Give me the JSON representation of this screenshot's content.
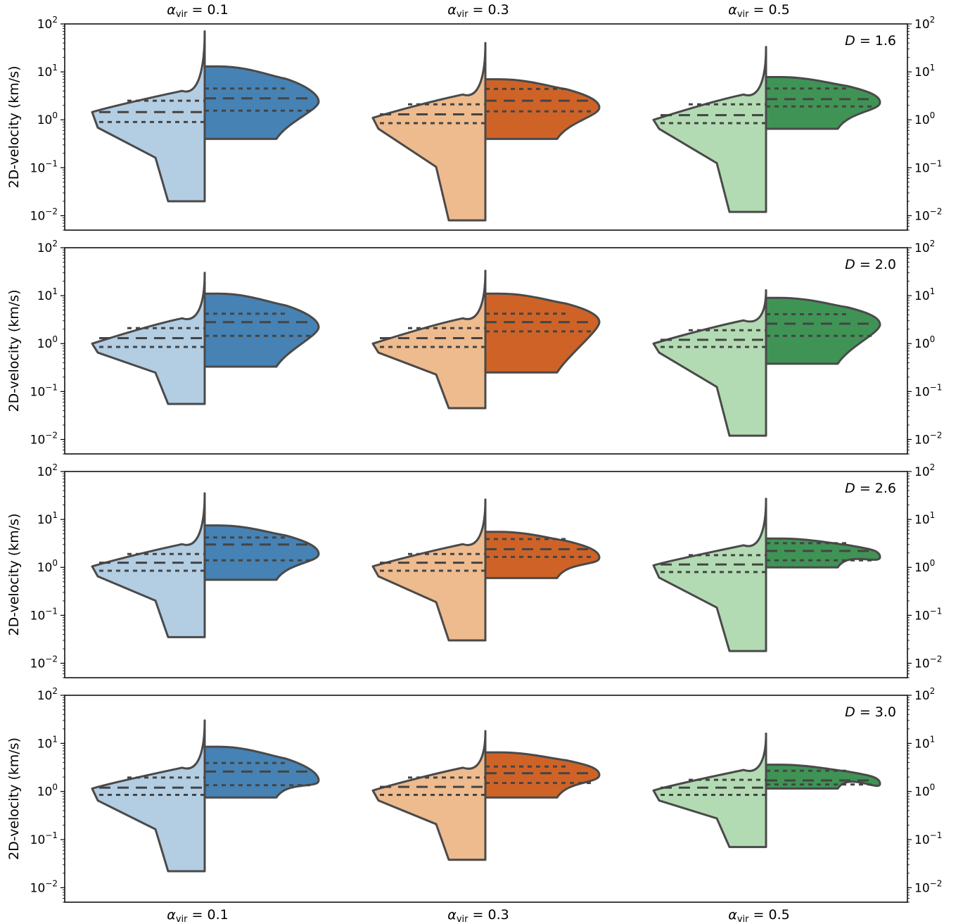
{
  "figure": {
    "column_labels": [
      {
        "symbol": "α",
        "subscript": "vir",
        "value": " = 0.1"
      },
      {
        "symbol": "α",
        "subscript": "vir",
        "value": " = 0.3"
      },
      {
        "symbol": "α",
        "subscript": "vir",
        "value": " = 0.5"
      }
    ],
    "ylabel": "2D-velocity (km/s)"
  },
  "chart_data": {
    "type": "split-violin",
    "yscale": "log",
    "ylim": [
      0.005,
      100
    ],
    "yticks": [
      0.01,
      0.1,
      1,
      10,
      100
    ],
    "ytick_labels": [
      {
        "base": "10",
        "exp": "−2"
      },
      {
        "base": "10",
        "exp": "−1"
      },
      {
        "base": "10",
        "exp": "0"
      },
      {
        "base": "10",
        "exp": "1"
      },
      {
        "base": "10",
        "exp": "2"
      }
    ],
    "grid": false,
    "groups": [
      "α_vir = 0.1",
      "α_vir = 0.3",
      "α_vir = 0.5"
    ],
    "colors": {
      "outline": "#4a4a4a",
      "quartile_line": "#444444",
      "light": [
        "#b3cde3",
        "#eebb8e",
        "#b3dbb3"
      ],
      "dark": [
        "#4682b4",
        "#cf6327",
        "#3f9455"
      ]
    },
    "panels": [
      {
        "annotation": {
          "var": "D",
          "value": " = 1.6"
        },
        "violins": [
          {
            "left": {
              "min": 0.02,
              "max": 70,
              "q1": 0.9,
              "median": 1.45,
              "q3": 2.5,
              "head": 1.45
            },
            "right": {
              "min": 0.4,
              "max": 13,
              "q1": 1.55,
              "median": 2.8,
              "q3": 4.5,
              "bulge": 2.4
            }
          },
          {
            "left": {
              "min": 0.008,
              "max": 40,
              "q1": 0.85,
              "median": 1.3,
              "q3": 2.1,
              "head": 1.1
            },
            "right": {
              "min": 0.4,
              "max": 7,
              "q1": 1.5,
              "median": 2.5,
              "q3": 4.4,
              "bulge": 1.8
            }
          },
          {
            "left": {
              "min": 0.012,
              "max": 33,
              "q1": 0.85,
              "median": 1.25,
              "q3": 2.1,
              "head": 1.0
            },
            "right": {
              "min": 0.65,
              "max": 7.8,
              "q1": 1.9,
              "median": 2.7,
              "q3": 4.5,
              "bulge": 2.3
            }
          }
        ]
      },
      {
        "annotation": {
          "var": "D",
          "value": " = 2.0"
        },
        "violins": [
          {
            "left": {
              "min": 0.055,
              "max": 30,
              "q1": 0.85,
              "median": 1.3,
              "q3": 2.1,
              "head": 1.0
            },
            "right": {
              "min": 0.33,
              "max": 11,
              "q1": 1.45,
              "median": 2.8,
              "q3": 4.2,
              "bulge": 2.2
            }
          },
          {
            "left": {
              "min": 0.045,
              "max": 33,
              "q1": 0.85,
              "median": 1.3,
              "q3": 2.1,
              "head": 1.0
            },
            "right": {
              "min": 0.25,
              "max": 11,
              "q1": 1.8,
              "median": 2.8,
              "q3": 4.2,
              "bulge": 2.8
            }
          },
          {
            "left": {
              "min": 0.012,
              "max": 13,
              "q1": 0.85,
              "median": 1.2,
              "q3": 1.9,
              "head": 1.0
            },
            "right": {
              "min": 0.38,
              "max": 9,
              "q1": 1.45,
              "median": 2.6,
              "q3": 4.1,
              "bulge": 2.5
            }
          }
        ]
      },
      {
        "annotation": {
          "var": "D",
          "value": " = 2.6"
        },
        "violins": [
          {
            "left": {
              "min": 0.035,
              "max": 35,
              "q1": 0.85,
              "median": 1.25,
              "q3": 1.9,
              "head": 1.05
            },
            "right": {
              "min": 0.55,
              "max": 7.5,
              "q1": 1.4,
              "median": 3.0,
              "q3": 4.2,
              "bulge": 1.9
            }
          },
          {
            "left": {
              "min": 0.03,
              "max": 26,
              "q1": 0.85,
              "median": 1.25,
              "q3": 1.9,
              "head": 1.05
            },
            "right": {
              "min": 0.6,
              "max": 5.5,
              "q1": 1.65,
              "median": 2.4,
              "q3": 3.9,
              "bulge": 1.6
            }
          },
          {
            "left": {
              "min": 0.018,
              "max": 27,
              "q1": 0.8,
              "median": 1.15,
              "q3": 1.8,
              "head": 1.1
            },
            "right": {
              "min": 1.0,
              "max": 4.0,
              "q1": 1.4,
              "median": 2.2,
              "q3": 3.2,
              "bulge": 1.65
            }
          }
        ]
      },
      {
        "annotation": {
          "var": "D",
          "value": " = 3.0"
        },
        "violins": [
          {
            "left": {
              "min": 0.022,
              "max": 30,
              "q1": 0.85,
              "median": 1.2,
              "q3": 1.95,
              "head": 1.15
            },
            "right": {
              "min": 0.75,
              "max": 8.5,
              "q1": 1.35,
              "median": 2.6,
              "q3": 3.9,
              "bulge": 1.7
            }
          },
          {
            "left": {
              "min": 0.038,
              "max": 18,
              "q1": 0.85,
              "median": 1.25,
              "q3": 1.95,
              "head": 1.05
            },
            "right": {
              "min": 0.75,
              "max": 6.5,
              "q1": 1.5,
              "median": 2.4,
              "q3": 3.3,
              "bulge": 2.2
            }
          },
          {
            "left": {
              "min": 0.07,
              "max": 16,
              "q1": 0.85,
              "median": 1.2,
              "q3": 1.75,
              "head": 1.05
            },
            "right": {
              "min": 1.15,
              "max": 3.6,
              "q1": 1.4,
              "median": 1.7,
              "q3": 2.7,
              "bulge": 1.45
            }
          }
        ]
      }
    ]
  }
}
